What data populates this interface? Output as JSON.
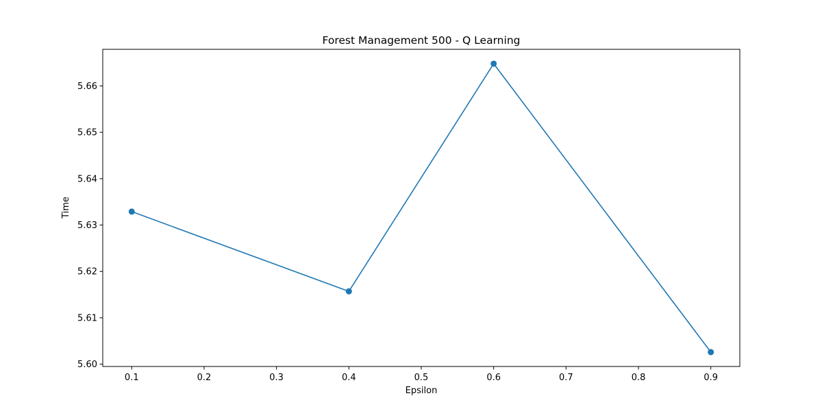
{
  "chart_data": {
    "type": "line",
    "title": "Forest Management 500 - Q Learning",
    "xlabel": "Epsilon",
    "ylabel": "Time",
    "x": [
      0.1,
      0.4,
      0.6,
      0.9
    ],
    "series": [
      {
        "values": [
          5.6329,
          5.6157,
          5.6648,
          5.6026
        ],
        "color": "#1f77b4",
        "marker": "circle"
      }
    ],
    "xlim": [
      0.06,
      0.94
    ],
    "ylim": [
      5.5995,
      5.6679
    ],
    "xticks": [
      "0.1",
      "0.2",
      "0.3",
      "0.4",
      "0.5",
      "0.6",
      "0.7",
      "0.8",
      "0.9"
    ],
    "yticks": [
      "5.60",
      "5.61",
      "5.62",
      "5.63",
      "5.64",
      "5.65",
      "5.66"
    ],
    "grid": false,
    "legend": false
  }
}
